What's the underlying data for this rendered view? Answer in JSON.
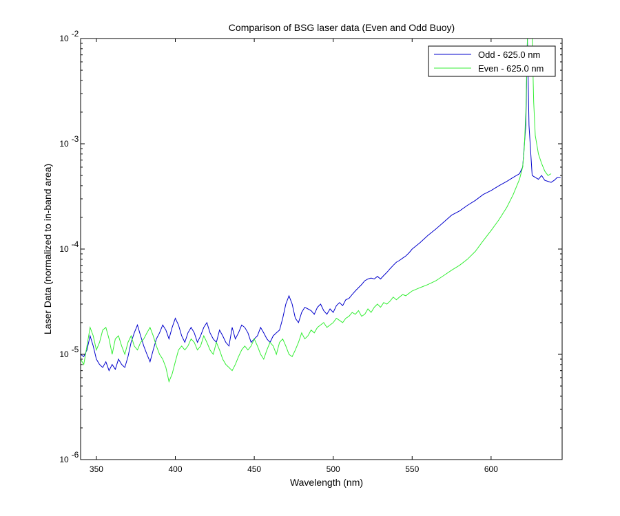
{
  "chart_data": {
    "type": "line",
    "title": "Comparison of BSG laser data (Even and Odd Buoy)",
    "xlabel": "Wavelength (nm)",
    "ylabel": "Laser Data (normalized to in-band area)",
    "xlim": [
      340,
      645
    ],
    "ylim": [
      1e-06,
      0.01
    ],
    "yscale": "log",
    "x_ticks": [
      350,
      400,
      450,
      500,
      550,
      600
    ],
    "x_tick_labels": [
      "350",
      "400",
      "450",
      "500",
      "550",
      "600"
    ],
    "y_ticks": [
      {
        "value": 1e-06,
        "base": "10",
        "exp": "-6"
      },
      {
        "value": 1e-05,
        "base": "10",
        "exp": "-5"
      },
      {
        "value": 0.0001,
        "base": "10",
        "exp": "-4"
      },
      {
        "value": 0.001,
        "base": "10",
        "exp": "-3"
      },
      {
        "value": 0.01,
        "base": "10",
        "exp": "-2"
      }
    ],
    "legend_position": "top-right",
    "series": [
      {
        "name": "Odd - 625.0 nm",
        "color": "#0000cc",
        "points": [
          [
            340,
            1e-05
          ],
          [
            342,
            9.5e-06
          ],
          [
            344,
            1.1e-05
          ],
          [
            346,
            1.5e-05
          ],
          [
            348,
            1.2e-05
          ],
          [
            350,
            9e-06
          ],
          [
            352,
            8e-06
          ],
          [
            354,
            7.5e-06
          ],
          [
            356,
            8.5e-06
          ],
          [
            358,
            7e-06
          ],
          [
            360,
            8e-06
          ],
          [
            362,
            7.2e-06
          ],
          [
            364,
            9e-06
          ],
          [
            366,
            8e-06
          ],
          [
            368,
            7.5e-06
          ],
          [
            370,
            9.5e-06
          ],
          [
            372,
            1.3e-05
          ],
          [
            374,
            1.6e-05
          ],
          [
            376,
            1.9e-05
          ],
          [
            378,
            1.5e-05
          ],
          [
            380,
            1.2e-05
          ],
          [
            382,
            1e-05
          ],
          [
            384,
            8.5e-06
          ],
          [
            386,
            1.1e-05
          ],
          [
            388,
            1.4e-05
          ],
          [
            390,
            1.6e-05
          ],
          [
            392,
            1.9e-05
          ],
          [
            394,
            1.7e-05
          ],
          [
            396,
            1.4e-05
          ],
          [
            398,
            1.8e-05
          ],
          [
            400,
            2.2e-05
          ],
          [
            402,
            1.9e-05
          ],
          [
            404,
            1.5e-05
          ],
          [
            406,
            1.3e-05
          ],
          [
            408,
            1.6e-05
          ],
          [
            410,
            1.8e-05
          ],
          [
            412,
            1.6e-05
          ],
          [
            414,
            1.3e-05
          ],
          [
            416,
            1.5e-05
          ],
          [
            418,
            1.8e-05
          ],
          [
            420,
            2e-05
          ],
          [
            422,
            1.6e-05
          ],
          [
            424,
            1.4e-05
          ],
          [
            426,
            1.3e-05
          ],
          [
            428,
            1.7e-05
          ],
          [
            430,
            1.5e-05
          ],
          [
            432,
            1.3e-05
          ],
          [
            434,
            1.2e-05
          ],
          [
            436,
            1.8e-05
          ],
          [
            438,
            1.4e-05
          ],
          [
            440,
            1.6e-05
          ],
          [
            442,
            1.9e-05
          ],
          [
            444,
            1.8e-05
          ],
          [
            446,
            1.6e-05
          ],
          [
            448,
            1.3e-05
          ],
          [
            450,
            1.4e-05
          ],
          [
            452,
            1.5e-05
          ],
          [
            454,
            1.8e-05
          ],
          [
            456,
            1.6e-05
          ],
          [
            458,
            1.4e-05
          ],
          [
            460,
            1.3e-05
          ],
          [
            462,
            1.5e-05
          ],
          [
            464,
            1.6e-05
          ],
          [
            466,
            1.7e-05
          ],
          [
            468,
            2.2e-05
          ],
          [
            470,
            3e-05
          ],
          [
            472,
            3.6e-05
          ],
          [
            474,
            3e-05
          ],
          [
            476,
            2.2e-05
          ],
          [
            478,
            2e-05
          ],
          [
            480,
            2.5e-05
          ],
          [
            482,
            2.8e-05
          ],
          [
            484,
            2.7e-05
          ],
          [
            486,
            2.6e-05
          ],
          [
            488,
            2.4e-05
          ],
          [
            490,
            2.8e-05
          ],
          [
            492,
            3e-05
          ],
          [
            494,
            2.6e-05
          ],
          [
            496,
            2.4e-05
          ],
          [
            498,
            2.7e-05
          ],
          [
            500,
            2.5e-05
          ],
          [
            502,
            2.9e-05
          ],
          [
            504,
            3.1e-05
          ],
          [
            506,
            2.9e-05
          ],
          [
            508,
            3.3e-05
          ],
          [
            510,
            3.4e-05
          ],
          [
            512,
            3.7e-05
          ],
          [
            514,
            4e-05
          ],
          [
            516,
            4.3e-05
          ],
          [
            518,
            4.6e-05
          ],
          [
            520,
            5e-05
          ],
          [
            522,
            5.2e-05
          ],
          [
            524,
            5.3e-05
          ],
          [
            526,
            5.2e-05
          ],
          [
            528,
            5.5e-05
          ],
          [
            530,
            5.2e-05
          ],
          [
            532,
            5.6e-05
          ],
          [
            534,
            6e-05
          ],
          [
            536,
            6.5e-05
          ],
          [
            538,
            7e-05
          ],
          [
            540,
            7.5e-05
          ],
          [
            542,
            7.8e-05
          ],
          [
            544,
            8.2e-05
          ],
          [
            546,
            8.6e-05
          ],
          [
            548,
            9.2e-05
          ],
          [
            550,
            0.0001
          ],
          [
            555,
            0.000115
          ],
          [
            560,
            0.000135
          ],
          [
            565,
            0.000155
          ],
          [
            570,
            0.00018
          ],
          [
            575,
            0.00021
          ],
          [
            580,
            0.00023
          ],
          [
            585,
            0.00026
          ],
          [
            590,
            0.00029
          ],
          [
            595,
            0.00033
          ],
          [
            600,
            0.00036
          ],
          [
            605,
            0.0004
          ],
          [
            610,
            0.00044
          ],
          [
            614,
            0.00048
          ],
          [
            618,
            0.00052
          ],
          [
            620,
            0.0006
          ],
          [
            622,
            0.0015
          ],
          [
            623,
            0.01
          ],
          [
            624,
            0.0015
          ],
          [
            626,
            0.0005
          ],
          [
            628,
            0.00048
          ],
          [
            630,
            0.00046
          ],
          [
            632,
            0.0005
          ],
          [
            634,
            0.00045
          ],
          [
            636,
            0.00044
          ],
          [
            638,
            0.00043
          ],
          [
            640,
            0.00045
          ],
          [
            642,
            0.00048
          ],
          [
            644,
            0.00048
          ]
        ]
      },
      {
        "name": "Even - 625.0 nm",
        "color": "#33ee33",
        "points": [
          [
            340,
            9e-06
          ],
          [
            342,
            8e-06
          ],
          [
            344,
            1.2e-05
          ],
          [
            346,
            1.8e-05
          ],
          [
            348,
            1.5e-05
          ],
          [
            350,
            1.1e-05
          ],
          [
            352,
            1.3e-05
          ],
          [
            354,
            1.7e-05
          ],
          [
            356,
            1.8e-05
          ],
          [
            358,
            1.4e-05
          ],
          [
            360,
            1e-05
          ],
          [
            362,
            1.4e-05
          ],
          [
            364,
            1.5e-05
          ],
          [
            366,
            1.2e-05
          ],
          [
            368,
            1e-05
          ],
          [
            370,
            1.3e-05
          ],
          [
            372,
            1.5e-05
          ],
          [
            374,
            1.2e-05
          ],
          [
            376,
            1.1e-05
          ],
          [
            378,
            1.3e-05
          ],
          [
            380,
            1.4e-05
          ],
          [
            382,
            1.6e-05
          ],
          [
            384,
            1.8e-05
          ],
          [
            386,
            1.5e-05
          ],
          [
            388,
            1.2e-05
          ],
          [
            390,
            1e-05
          ],
          [
            392,
            9e-06
          ],
          [
            394,
            7.5e-06
          ],
          [
            396,
            5.5e-06
          ],
          [
            398,
            6.5e-06
          ],
          [
            400,
            8.5e-06
          ],
          [
            402,
            1.1e-05
          ],
          [
            404,
            1.2e-05
          ],
          [
            406,
            1.1e-05
          ],
          [
            408,
            1.2e-05
          ],
          [
            410,
            1.4e-05
          ],
          [
            412,
            1.3e-05
          ],
          [
            414,
            1.1e-05
          ],
          [
            416,
            1.2e-05
          ],
          [
            418,
            1.5e-05
          ],
          [
            420,
            1.3e-05
          ],
          [
            422,
            1.1e-05
          ],
          [
            424,
            1e-05
          ],
          [
            426,
            1.3e-05
          ],
          [
            428,
            1.1e-05
          ],
          [
            430,
            9e-06
          ],
          [
            432,
            8e-06
          ],
          [
            434,
            7.5e-06
          ],
          [
            436,
            7e-06
          ],
          [
            438,
            8e-06
          ],
          [
            440,
            9.5e-06
          ],
          [
            442,
            1.1e-05
          ],
          [
            444,
            1.2e-05
          ],
          [
            446,
            1.1e-05
          ],
          [
            448,
            1.2e-05
          ],
          [
            450,
            1.4e-05
          ],
          [
            452,
            1.2e-05
          ],
          [
            454,
            1e-05
          ],
          [
            456,
            9e-06
          ],
          [
            458,
            1.1e-05
          ],
          [
            460,
            1.3e-05
          ],
          [
            462,
            1.2e-05
          ],
          [
            464,
            1e-05
          ],
          [
            466,
            1.3e-05
          ],
          [
            468,
            1.4e-05
          ],
          [
            470,
            1.2e-05
          ],
          [
            472,
            1e-05
          ],
          [
            474,
            9.5e-06
          ],
          [
            476,
            1.1e-05
          ],
          [
            478,
            1.3e-05
          ],
          [
            480,
            1.6e-05
          ],
          [
            482,
            1.4e-05
          ],
          [
            484,
            1.5e-05
          ],
          [
            486,
            1.7e-05
          ],
          [
            488,
            1.6e-05
          ],
          [
            490,
            1.8e-05
          ],
          [
            492,
            1.9e-05
          ],
          [
            494,
            2e-05
          ],
          [
            496,
            1.8e-05
          ],
          [
            498,
            1.9e-05
          ],
          [
            500,
            2e-05
          ],
          [
            502,
            2.2e-05
          ],
          [
            504,
            2.1e-05
          ],
          [
            506,
            2e-05
          ],
          [
            508,
            2.2e-05
          ],
          [
            510,
            2.3e-05
          ],
          [
            512,
            2.5e-05
          ],
          [
            514,
            2.4e-05
          ],
          [
            516,
            2.6e-05
          ],
          [
            518,
            2.3e-05
          ],
          [
            520,
            2.4e-05
          ],
          [
            522,
            2.7e-05
          ],
          [
            524,
            2.5e-05
          ],
          [
            526,
            2.8e-05
          ],
          [
            528,
            3e-05
          ],
          [
            530,
            2.8e-05
          ],
          [
            532,
            3.1e-05
          ],
          [
            534,
            3e-05
          ],
          [
            536,
            3.2e-05
          ],
          [
            538,
            3.5e-05
          ],
          [
            540,
            3.3e-05
          ],
          [
            542,
            3.5e-05
          ],
          [
            544,
            3.7e-05
          ],
          [
            546,
            3.6e-05
          ],
          [
            548,
            3.8e-05
          ],
          [
            550,
            4e-05
          ],
          [
            555,
            4.3e-05
          ],
          [
            560,
            4.6e-05
          ],
          [
            565,
            5e-05
          ],
          [
            570,
            5.6e-05
          ],
          [
            575,
            6.3e-05
          ],
          [
            580,
            7e-05
          ],
          [
            585,
            8e-05
          ],
          [
            590,
            9.5e-05
          ],
          [
            595,
            0.00012
          ],
          [
            600,
            0.00015
          ],
          [
            605,
            0.00019
          ],
          [
            610,
            0.00025
          ],
          [
            614,
            0.00033
          ],
          [
            618,
            0.00046
          ],
          [
            620,
            0.0006
          ],
          [
            621,
            0.0009
          ],
          [
            622,
            0.002
          ],
          [
            623,
            0.01
          ],
          [
            626,
            0.01
          ],
          [
            627,
            0.0025
          ],
          [
            628,
            0.0012
          ],
          [
            630,
            0.0008
          ],
          [
            632,
            0.00065
          ],
          [
            634,
            0.00055
          ],
          [
            636,
            0.0005
          ],
          [
            638,
            0.00052
          ]
        ]
      }
    ]
  }
}
